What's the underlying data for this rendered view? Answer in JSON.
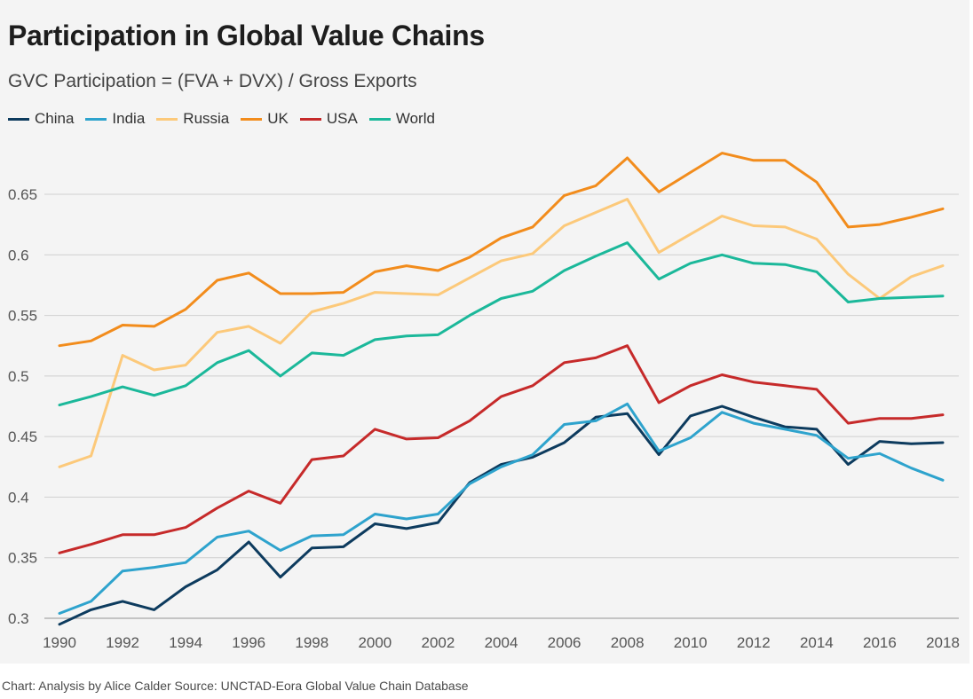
{
  "title": "Participation in Global Value Chains",
  "subtitle": "GVC Participation = (FVA + DVX) / Gross Exports",
  "caption": "Chart: Analysis by Alice Calder Source: UNCTAD-Eora Global Value Chain Database",
  "chart_data": {
    "type": "line",
    "title": "Participation in Global Value Chains",
    "subtitle": "GVC Participation = (FVA + DVX) / Gross Exports",
    "xlabel": "",
    "ylabel": "",
    "xlim": [
      1990,
      2018
    ],
    "ylim": [
      0.3,
      0.68
    ],
    "grid": true,
    "legend_position": "top-left",
    "x_ticks": [
      "1990",
      "1992",
      "1994",
      "1996",
      "1998",
      "2000",
      "2002",
      "2004",
      "2006",
      "2008",
      "2010",
      "2012",
      "2014",
      "2016",
      "2018"
    ],
    "y_ticks": [
      "0.3",
      "0.35",
      "0.4",
      "0.45",
      "0.5",
      "0.55",
      "0.6",
      "0.65"
    ],
    "x": [
      1990,
      1991,
      1992,
      1993,
      1994,
      1995,
      1996,
      1997,
      1998,
      1999,
      2000,
      2001,
      2002,
      2003,
      2004,
      2005,
      2006,
      2007,
      2008,
      2009,
      2010,
      2011,
      2012,
      2013,
      2014,
      2015,
      2016,
      2017,
      2018
    ],
    "series": [
      {
        "name": "China",
        "color": "#0d3b5e",
        "values": [
          0.295,
          0.307,
          0.314,
          0.307,
          0.326,
          0.34,
          0.363,
          0.334,
          0.358,
          0.359,
          0.378,
          0.374,
          0.379,
          0.412,
          0.427,
          0.433,
          0.445,
          0.466,
          0.469,
          0.435,
          0.467,
          0.475,
          0.466,
          0.458,
          0.456,
          0.427,
          0.446,
          0.444,
          0.445
        ]
      },
      {
        "name": "India",
        "color": "#2ea3cd",
        "values": [
          0.304,
          0.314,
          0.339,
          0.342,
          0.346,
          0.367,
          0.372,
          0.356,
          0.368,
          0.369,
          0.386,
          0.382,
          0.386,
          0.411,
          0.425,
          0.435,
          0.46,
          0.463,
          0.477,
          0.438,
          0.449,
          0.47,
          0.461,
          0.456,
          0.451,
          0.432,
          0.436,
          0.424,
          0.414
        ]
      },
      {
        "name": "Russia",
        "color": "#fcc97a",
        "values": [
          0.425,
          0.434,
          0.517,
          0.505,
          0.509,
          0.536,
          0.541,
          0.527,
          0.553,
          0.56,
          0.569,
          0.568,
          0.567,
          0.581,
          0.595,
          0.601,
          0.624,
          0.635,
          0.646,
          0.602,
          0.617,
          0.632,
          0.624,
          0.623,
          0.613,
          0.584,
          0.564,
          0.582,
          0.591
        ]
      },
      {
        "name": "UK",
        "color": "#f28c1c",
        "values": [
          0.525,
          0.529,
          0.542,
          0.541,
          0.555,
          0.579,
          0.585,
          0.568,
          0.568,
          0.569,
          0.586,
          0.591,
          0.587,
          0.598,
          0.614,
          0.623,
          0.649,
          0.657,
          0.68,
          0.652,
          0.668,
          0.684,
          0.678,
          0.678,
          0.66,
          0.623,
          0.625,
          0.631,
          0.638
        ]
      },
      {
        "name": "USA",
        "color": "#c62a2a",
        "values": [
          0.354,
          0.361,
          0.369,
          0.369,
          0.375,
          0.391,
          0.405,
          0.395,
          0.431,
          0.434,
          0.456,
          0.448,
          0.449,
          0.463,
          0.483,
          0.492,
          0.511,
          0.515,
          0.525,
          0.478,
          0.492,
          0.501,
          0.495,
          0.492,
          0.489,
          0.461,
          0.465,
          0.465,
          0.468
        ]
      },
      {
        "name": "World",
        "color": "#1bb89a",
        "values": [
          0.476,
          0.483,
          0.491,
          0.484,
          0.492,
          0.511,
          0.521,
          0.5,
          0.519,
          0.517,
          0.53,
          0.533,
          0.534,
          0.55,
          0.564,
          0.57,
          0.587,
          0.599,
          0.61,
          0.58,
          0.593,
          0.6,
          0.593,
          0.592,
          0.586,
          0.561,
          0.564,
          0.565,
          0.566
        ]
      }
    ]
  }
}
